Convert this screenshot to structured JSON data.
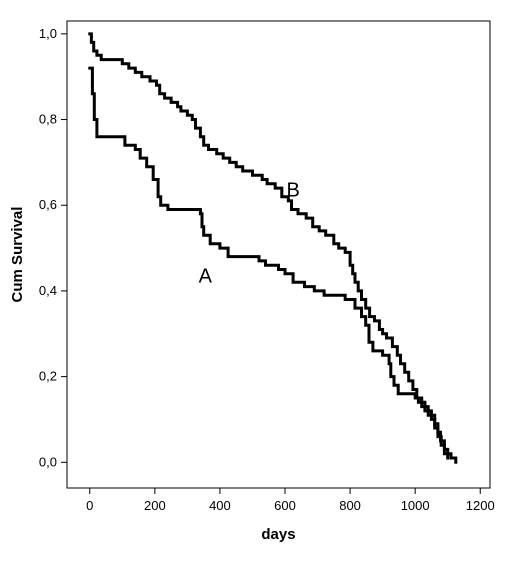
{
  "chart_data": {
    "type": "line",
    "step": true,
    "xlabel": "days",
    "ylabel": "Cum Survival",
    "xlim": [
      -70,
      1230
    ],
    "ylim": [
      -0.06,
      1.03
    ],
    "xticks": [
      0,
      200,
      400,
      600,
      800,
      1000,
      1200
    ],
    "yticks": [
      0.0,
      0.2,
      0.4,
      0.6,
      0.8,
      1.0
    ],
    "xtick_labels": [
      "0",
      "200",
      "400",
      "600",
      "800",
      "1000",
      "1200"
    ],
    "ytick_labels": [
      "0,0",
      "0,2",
      "0,4",
      "0,6",
      "0,8",
      "1,0"
    ],
    "grid": false,
    "legend": "none",
    "annotations": [
      {
        "text": "A",
        "x": 355,
        "y": 0.42
      },
      {
        "text": "B",
        "x": 625,
        "y": 0.62
      }
    ],
    "series": [
      {
        "label": "A",
        "color": "#000000",
        "points": [
          [
            0,
            0.92
          ],
          [
            8,
            0.86
          ],
          [
            14,
            0.8
          ],
          [
            22,
            0.76
          ],
          [
            90,
            0.76
          ],
          [
            108,
            0.74
          ],
          [
            140,
            0.73
          ],
          [
            155,
            0.71
          ],
          [
            175,
            0.69
          ],
          [
            195,
            0.66
          ],
          [
            210,
            0.62
          ],
          [
            218,
            0.6
          ],
          [
            240,
            0.59
          ],
          [
            340,
            0.58
          ],
          [
            345,
            0.55
          ],
          [
            350,
            0.53
          ],
          [
            370,
            0.51
          ],
          [
            400,
            0.5
          ],
          [
            425,
            0.48
          ],
          [
            520,
            0.47
          ],
          [
            540,
            0.46
          ],
          [
            580,
            0.45
          ],
          [
            600,
            0.44
          ],
          [
            625,
            0.42
          ],
          [
            660,
            0.41
          ],
          [
            690,
            0.4
          ],
          [
            720,
            0.39
          ],
          [
            785,
            0.38
          ],
          [
            815,
            0.36
          ],
          [
            835,
            0.34
          ],
          [
            848,
            0.32
          ],
          [
            858,
            0.28
          ],
          [
            870,
            0.26
          ],
          [
            900,
            0.25
          ],
          [
            920,
            0.23
          ],
          [
            925,
            0.2
          ],
          [
            935,
            0.18
          ],
          [
            948,
            0.16
          ],
          [
            1000,
            0.15
          ],
          [
            1010,
            0.14
          ],
          [
            1030,
            0.12
          ],
          [
            1050,
            0.1
          ],
          [
            1060,
            0.08
          ],
          [
            1070,
            0.06
          ],
          [
            1080,
            0.04
          ],
          [
            1090,
            0.02
          ],
          [
            1100,
            0.01
          ]
        ]
      },
      {
        "label": "B",
        "color": "#000000",
        "points": [
          [
            0,
            1.0
          ],
          [
            5,
            0.98
          ],
          [
            12,
            0.96
          ],
          [
            22,
            0.95
          ],
          [
            35,
            0.94
          ],
          [
            100,
            0.93
          ],
          [
            120,
            0.92
          ],
          [
            140,
            0.91
          ],
          [
            160,
            0.9
          ],
          [
            185,
            0.89
          ],
          [
            205,
            0.88
          ],
          [
            215,
            0.86
          ],
          [
            230,
            0.85
          ],
          [
            250,
            0.84
          ],
          [
            270,
            0.83
          ],
          [
            280,
            0.82
          ],
          [
            300,
            0.81
          ],
          [
            315,
            0.8
          ],
          [
            325,
            0.78
          ],
          [
            340,
            0.76
          ],
          [
            350,
            0.74
          ],
          [
            365,
            0.73
          ],
          [
            390,
            0.72
          ],
          [
            410,
            0.71
          ],
          [
            430,
            0.7
          ],
          [
            450,
            0.69
          ],
          [
            470,
            0.68
          ],
          [
            500,
            0.67
          ],
          [
            530,
            0.66
          ],
          [
            545,
            0.65
          ],
          [
            570,
            0.64
          ],
          [
            590,
            0.62
          ],
          [
            610,
            0.61
          ],
          [
            620,
            0.59
          ],
          [
            640,
            0.58
          ],
          [
            665,
            0.57
          ],
          [
            685,
            0.55
          ],
          [
            705,
            0.54
          ],
          [
            725,
            0.53
          ],
          [
            750,
            0.51
          ],
          [
            765,
            0.5
          ],
          [
            785,
            0.49
          ],
          [
            800,
            0.46
          ],
          [
            808,
            0.44
          ],
          [
            815,
            0.42
          ],
          [
            825,
            0.4
          ],
          [
            835,
            0.38
          ],
          [
            848,
            0.36
          ],
          [
            860,
            0.34
          ],
          [
            875,
            0.33
          ],
          [
            890,
            0.31
          ],
          [
            900,
            0.3
          ],
          [
            912,
            0.29
          ],
          [
            930,
            0.27
          ],
          [
            945,
            0.25
          ],
          [
            955,
            0.23
          ],
          [
            968,
            0.21
          ],
          [
            980,
            0.19
          ],
          [
            993,
            0.17
          ],
          [
            1005,
            0.15
          ],
          [
            1020,
            0.13
          ],
          [
            1040,
            0.11
          ],
          [
            1060,
            0.09
          ],
          [
            1070,
            0.07
          ],
          [
            1078,
            0.05
          ],
          [
            1090,
            0.03
          ],
          [
            1100,
            0.02
          ],
          [
            1110,
            0.01
          ],
          [
            1125,
            0.0
          ]
        ]
      }
    ]
  }
}
